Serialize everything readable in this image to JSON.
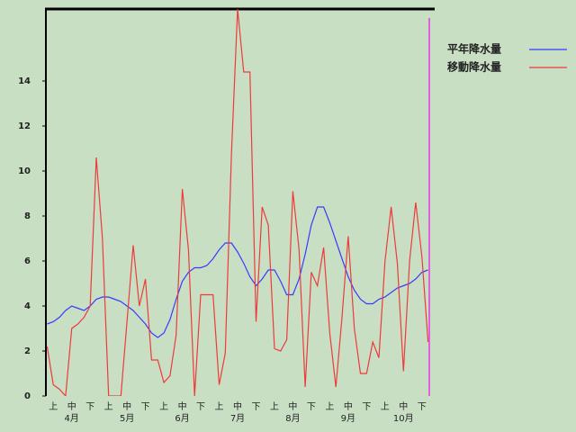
{
  "chart_data": {
    "type": "line",
    "categories": [
      null,
      "上",
      null,
      null,
      "中",
      null,
      null,
      "下",
      null,
      null,
      "上",
      null,
      null,
      "中",
      null,
      null,
      "下",
      null,
      null,
      "上",
      null,
      null,
      "中",
      null,
      null,
      "下",
      null,
      null,
      "上",
      null,
      null,
      "中",
      null,
      null,
      "下",
      null,
      null,
      "上",
      null,
      null,
      "中",
      null,
      null,
      "下",
      null,
      null,
      "上",
      null,
      null,
      "中",
      null,
      null,
      "下",
      null,
      null,
      "上",
      null,
      null,
      "中",
      null,
      null,
      "下",
      null
    ],
    "months": [
      "4月",
      "5月",
      "6月",
      "7月",
      "8月",
      "9月",
      "10月"
    ],
    "series": [
      {
        "name": "平年降水量",
        "color": "#3a3aff",
        "values": [
          3.2,
          3.3,
          3.5,
          3.8,
          4.0,
          3.9,
          3.8,
          4.0,
          4.3,
          4.4,
          4.4,
          4.3,
          4.2,
          4.0,
          3.8,
          3.5,
          3.2,
          2.8,
          2.6,
          2.8,
          3.4,
          4.3,
          5.1,
          5.5,
          5.7,
          5.7,
          5.8,
          6.1,
          6.5,
          6.8,
          6.8,
          6.4,
          5.9,
          5.3,
          4.9,
          5.2,
          5.6,
          5.6,
          5.1,
          4.5,
          4.5,
          5.2,
          6.3,
          7.6,
          8.4,
          8.4,
          7.7,
          6.9,
          6.1,
          5.3,
          4.7,
          4.3,
          4.1,
          4.1,
          4.3,
          4.4,
          4.6,
          4.8,
          4.9,
          5.0,
          5.2,
          5.5,
          5.6
        ]
      },
      {
        "name": "移動降水量",
        "color": "#ee3a3a",
        "values": [
          2.2,
          0.5,
          0.3,
          0.0,
          3.0,
          3.2,
          3.5,
          4.0,
          10.6,
          7.0,
          0.0,
          0.0,
          0.0,
          3.3,
          6.7,
          4.0,
          5.2,
          1.6,
          1.6,
          0.6,
          0.9,
          2.7,
          9.2,
          6.5,
          0.0,
          4.5,
          4.5,
          4.5,
          0.5,
          1.9,
          10.8,
          17.2,
          14.4,
          14.4,
          3.3,
          8.4,
          7.6,
          2.1,
          2.0,
          2.5,
          9.1,
          6.5,
          0.4,
          5.5,
          4.9,
          6.6,
          2.8,
          0.4,
          3.5,
          7.1,
          3.0,
          1.0,
          1.0,
          2.4,
          1.7,
          6.0,
          8.4,
          5.9,
          1.1,
          6.0,
          8.6,
          6.2,
          2.4
        ]
      }
    ],
    "ylim": [
      0,
      17.2
    ],
    "yticks": [
      0,
      2,
      4,
      6,
      8,
      10,
      12,
      14
    ]
  }
}
